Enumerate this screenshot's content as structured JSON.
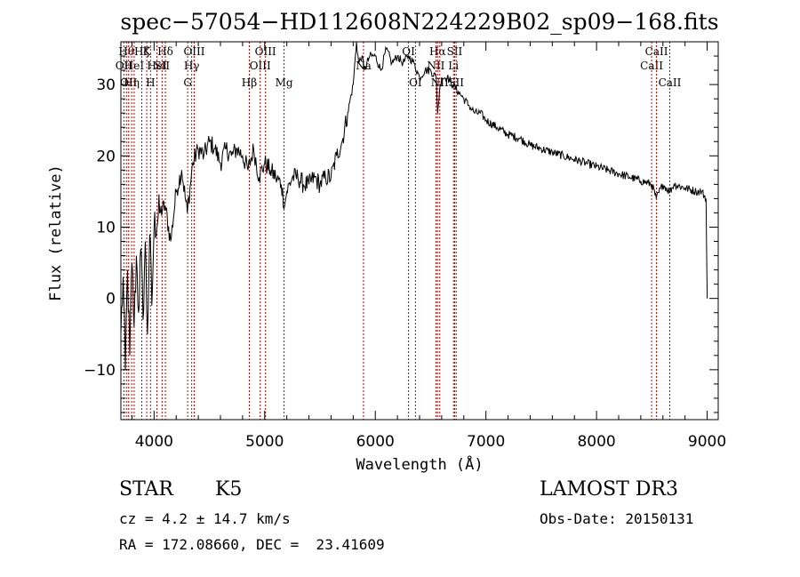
{
  "chart_data": {
    "type": "line",
    "title": "spec−57054−HD112608N224229B02_sp09−168.fits",
    "xlabel": "Wavelength (Å)",
    "ylabel": "Flux (relative)",
    "xlim": [
      3700,
      9100
    ],
    "ylim": [
      -17,
      36
    ],
    "xticks": [
      4000,
      5000,
      6000,
      7000,
      8000,
      9000
    ],
    "yticks": [
      -10,
      0,
      10,
      20,
      30
    ],
    "ytick_labels": [
      "−10",
      "0",
      "10",
      "20",
      "30"
    ],
    "series": [
      {
        "name": "flux",
        "x": [
          3700,
          3720,
          3740,
          3760,
          3780,
          3800,
          3820,
          3840,
          3860,
          3880,
          3900,
          3920,
          3940,
          3960,
          3980,
          4000,
          4050,
          4100,
          4150,
          4200,
          4250,
          4300,
          4350,
          4400,
          4450,
          4500,
          4550,
          4600,
          4650,
          4700,
          4750,
          4800,
          4850,
          4900,
          4950,
          5000,
          5050,
          5100,
          5150,
          5180,
          5200,
          5250,
          5300,
          5350,
          5400,
          5450,
          5500,
          5550,
          5600,
          5650,
          5700,
          5750,
          5800,
          5830,
          5850,
          5880,
          5900,
          5950,
          6000,
          6050,
          6100,
          6150,
          6200,
          6250,
          6300,
          6350,
          6400,
          6450,
          6500,
          6550,
          6563,
          6580,
          6600,
          6650,
          6700,
          6750,
          6800,
          6850,
          6900,
          6950,
          7000,
          7100,
          7200,
          7300,
          7400,
          7500,
          7600,
          7700,
          7800,
          7900,
          8000,
          8100,
          8200,
          8300,
          8400,
          8500,
          8540,
          8600,
          8662,
          8700,
          8800,
          8900,
          8950,
          8990,
          9000
        ],
        "values": [
          -5,
          3,
          -10,
          4,
          -8,
          5,
          -4,
          6,
          -2,
          7,
          -3,
          8,
          -5,
          9,
          -1,
          10,
          12,
          13,
          8,
          15,
          18,
          12,
          19,
          21,
          20,
          22,
          21,
          19,
          21,
          20,
          21,
          20,
          18,
          21,
          17,
          19,
          18,
          17,
          16,
          13,
          15,
          17,
          17,
          16,
          16,
          17,
          16,
          17,
          17,
          20,
          22,
          26,
          30,
          36,
          33,
          34,
          32,
          34,
          34,
          32,
          35,
          33,
          34,
          33,
          34,
          33,
          31,
          32,
          32,
          31,
          26,
          29,
          31,
          31,
          30,
          29,
          28,
          27,
          26,
          26,
          25,
          24,
          23,
          22.5,
          21.5,
          21,
          20.5,
          20,
          19.5,
          19,
          18.5,
          18,
          17.5,
          17,
          16.5,
          16,
          14,
          16,
          15,
          16,
          15.5,
          15,
          15,
          14,
          0
        ]
      }
    ],
    "lines": [
      {
        "x": 3727,
        "label": "OII",
        "row": 2
      },
      {
        "x": 3750,
        "label": "Hθ",
        "row": 1
      },
      {
        "x": 3770,
        "label": "OII",
        "row": 3
      },
      {
        "x": 3797,
        "label": "Hη",
        "row": 3
      },
      {
        "x": 3820,
        "label": "HeI",
        "row": 2
      },
      {
        "x": 3889,
        "label": "Hζ",
        "row": 1
      },
      {
        "x": 3934,
        "label": "K",
        "row": 1
      },
      {
        "x": 3968,
        "label": "H",
        "row": 3
      },
      {
        "x": 4026,
        "label": "HeI",
        "row": 2
      },
      {
        "x": 4072,
        "label": "SII",
        "row": 2
      },
      {
        "x": 4102,
        "label": "Hδ",
        "row": 1
      },
      {
        "x": 4304,
        "label": "G",
        "row": 3
      },
      {
        "x": 4340,
        "label": "Hγ",
        "row": 2
      },
      {
        "x": 4363,
        "label": "OIII",
        "row": 1
      },
      {
        "x": 4861,
        "label": "Hβ",
        "row": 3
      },
      {
        "x": 4959,
        "label": "OIII",
        "row": 2
      },
      {
        "x": 5007,
        "label": "OIII",
        "row": 1
      },
      {
        "x": 5175,
        "label": "Mg",
        "row": 3
      },
      {
        "x": 5893,
        "label": "Na",
        "row": 2
      },
      {
        "x": 6300,
        "label": "OI",
        "row": 1
      },
      {
        "x": 6363,
        "label": "OI",
        "row": 3
      },
      {
        "x": 6548,
        "label": "NII",
        "row": 2
      },
      {
        "x": 6563,
        "label": "Hα",
        "row": 1
      },
      {
        "x": 6583,
        "label": "NII",
        "row": 3
      },
      {
        "x": 6707,
        "label": "Li",
        "row": 2
      },
      {
        "x": 6717,
        "label": "SII",
        "row": 1
      },
      {
        "x": 6731,
        "label": "SII",
        "row": 3
      },
      {
        "x": 8498,
        "label": "CaII",
        "row": 2
      },
      {
        "x": 8542,
        "label": "CaII",
        "row": 1
      },
      {
        "x": 8662,
        "label": "CaII",
        "row": 3
      }
    ],
    "line_color": "#c00000"
  },
  "info": {
    "class": "STAR",
    "subclass": "K5",
    "survey": "LAMOST DR3",
    "cz": "cz = 4.2 ± 14.7 km/s",
    "obs_date": "Obs-Date: 20150131",
    "radec": "RA = 172.08660, DEC =  23.41609"
  }
}
